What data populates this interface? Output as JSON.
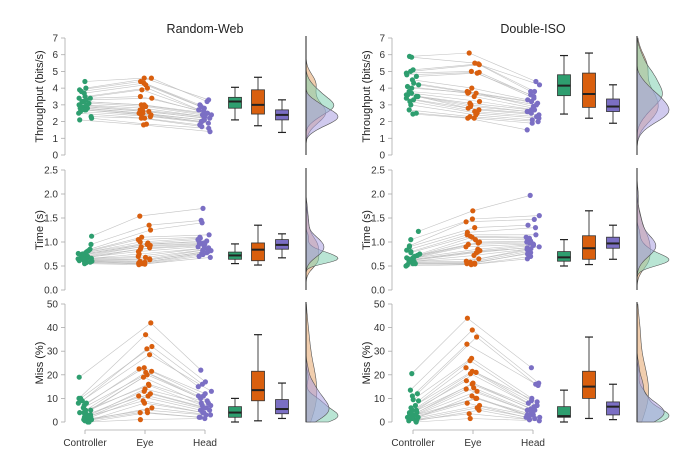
{
  "chart_data": {
    "type": "raincloud",
    "colors": {
      "Controller": "#2e9e6f",
      "Eye": "#d95f0e",
      "Head": "#7b6fc4",
      "line": "#bdbdbd",
      "axis": "#aaaaaa"
    },
    "density_colors": {
      "Controller": "#7fd0b0",
      "Eye": "#e6a56b",
      "Head": "#a99fe0"
    },
    "categories": [
      "Controller",
      "Eye",
      "Head"
    ],
    "panels": [
      {
        "title": "Random-Web",
        "rows": [
          {
            "metric": "Throughput",
            "ylabel": "Throughput (bits/s)",
            "ylim": [
              0,
              7
            ],
            "yticks": [
              "0",
              "1",
              "2",
              "3",
              "4",
              "5",
              "6",
              "7"
            ],
            "points": {
              "Controller": [
                4.4,
                4.0,
                3.9,
                3.8,
                3.7,
                3.5,
                3.4,
                3.4,
                3.3,
                3.2,
                3.2,
                3.1,
                3.0,
                3.0,
                2.9,
                2.9,
                2.8,
                2.8,
                2.7,
                2.7,
                2.6,
                2.5,
                2.3,
                2.2,
                2.1
              ],
              "Eye": [
                4.6,
                4.6,
                4.4,
                4.3,
                4.2,
                4.0,
                3.9,
                3.5,
                3.4,
                3.0,
                3.0,
                2.9,
                2.8,
                2.7,
                2.6,
                2.6,
                2.5,
                2.5,
                2.4,
                2.4,
                2.3,
                2.2,
                2.2,
                1.85,
                1.8
              ],
              "Head": [
                3.3,
                3.2,
                3.0,
                2.9,
                2.8,
                2.7,
                2.7,
                2.6,
                2.5,
                2.5,
                2.4,
                2.4,
                2.3,
                2.3,
                2.2,
                2.2,
                2.1,
                2.1,
                2.0,
                2.0,
                1.9,
                1.8,
                1.7,
                1.6,
                1.4
              ]
            },
            "box": {
              "Controller": {
                "min": 2.1,
                "q1": 2.8,
                "median": 3.2,
                "q3": 3.45,
                "max": 4.05
              },
              "Eye": {
                "min": 1.75,
                "q1": 2.45,
                "median": 3.0,
                "q3": 3.9,
                "max": 4.65
              },
              "Head": {
                "min": 1.35,
                "q1": 2.1,
                "median": 2.4,
                "q3": 2.7,
                "max": 3.3
              }
            }
          },
          {
            "metric": "Time",
            "ylabel": "Time (s)",
            "ylim": [
              0,
              2.5
            ],
            "yticks": [
              "0.0",
              "0.5",
              "1.0",
              "1.5",
              "2.0",
              "2.5"
            ],
            "points": {
              "Controller": [
                1.12,
                0.95,
                0.85,
                0.82,
                0.8,
                0.78,
                0.76,
                0.75,
                0.74,
                0.72,
                0.7,
                0.7,
                0.68,
                0.67,
                0.66,
                0.65,
                0.64,
                0.63,
                0.62,
                0.61,
                0.6,
                0.6,
                0.58,
                0.57,
                0.55
              ],
              "Eye": [
                1.54,
                1.35,
                1.25,
                1.1,
                1.05,
                1.0,
                0.98,
                0.96,
                0.95,
                0.93,
                0.9,
                0.88,
                0.85,
                0.8,
                0.75,
                0.7,
                0.68,
                0.65,
                0.63,
                0.6,
                0.58,
                0.56,
                0.55,
                0.54,
                0.53
              ],
              "Head": [
                1.7,
                1.45,
                1.4,
                1.15,
                1.1,
                1.08,
                1.05,
                1.02,
                1.0,
                0.98,
                0.96,
                0.95,
                0.93,
                0.9,
                0.88,
                0.87,
                0.85,
                0.83,
                0.82,
                0.8,
                0.78,
                0.76,
                0.74,
                0.7,
                0.68
              ]
            },
            "box": {
              "Controller": {
                "min": 0.55,
                "q1": 0.64,
                "median": 0.72,
                "q3": 0.79,
                "max": 0.96
              },
              "Eye": {
                "min": 0.52,
                "q1": 0.61,
                "median": 0.84,
                "q3": 0.98,
                "max": 1.35
              },
              "Head": {
                "min": 0.67,
                "q1": 0.85,
                "median": 0.94,
                "q3": 1.05,
                "max": 1.17
              }
            }
          },
          {
            "metric": "Miss",
            "ylabel": "Miss (%)",
            "ylim": [
              0,
              50
            ],
            "yticks": [
              "0",
              "10",
              "20",
              "30",
              "40",
              "50"
            ],
            "points": {
              "Controller": [
                19,
                10,
                10,
                9,
                8,
                8,
                7,
                6,
                5,
                5,
                4,
                4,
                4,
                3,
                3,
                3,
                2,
                2,
                2,
                1,
                1,
                1,
                0.5,
                0,
                0
              ],
              "Eye": [
                42,
                37,
                32,
                31,
                28.5,
                23,
                22.5,
                21.5,
                21,
                20,
                19,
                16,
                15.5,
                14,
                13,
                12,
                11,
                11,
                9,
                8,
                6,
                5,
                4,
                4,
                1
              ],
              "Head": [
                22,
                17,
                16,
                15,
                13,
                12,
                11,
                11,
                10,
                9,
                8,
                8,
                7,
                7,
                6,
                6,
                5,
                5,
                4,
                4,
                3,
                3,
                2,
                2,
                1.5
              ]
            },
            "box": {
              "Controller": {
                "min": 0,
                "q1": 2,
                "median": 4,
                "q3": 6.5,
                "max": 10
              },
              "Eye": {
                "min": 0.5,
                "q1": 9,
                "median": 13.5,
                "q3": 21.5,
                "max": 37
              },
              "Head": {
                "min": 1.5,
                "q1": 3.5,
                "median": 5.5,
                "q3": 9.5,
                "max": 16.5
              }
            }
          }
        ]
      },
      {
        "title": "Double-ISO",
        "rows": [
          {
            "metric": "Throughput",
            "ylabel": "Throughput (bits/s)",
            "ylim": [
              0,
              7
            ],
            "yticks": [
              "0",
              "1",
              "2",
              "3",
              "4",
              "5",
              "6",
              "7"
            ],
            "points": {
              "Controller": [
                5.9,
                5.85,
                5.1,
                5.0,
                4.9,
                4.8,
                4.7,
                4.5,
                4.3,
                4.2,
                4.1,
                4.0,
                3.8,
                3.7,
                3.6,
                3.6,
                3.5,
                3.5,
                3.4,
                3.3,
                3.2,
                3.0,
                2.7,
                2.5,
                2.45
              ],
              "Eye": [
                6.1,
                5.5,
                5.45,
                5.4,
                5.0,
                4.95,
                4.9,
                4.0,
                3.8,
                3.75,
                3.7,
                3.7,
                3.5,
                3.2,
                3.1,
                3.0,
                2.9,
                2.8,
                2.7,
                2.6,
                2.5,
                2.4,
                2.3,
                2.2,
                2.2
              ],
              "Head": [
                4.4,
                4.2,
                3.8,
                3.8,
                3.6,
                3.5,
                3.4,
                3.3,
                3.2,
                3.1,
                3.0,
                2.9,
                2.8,
                2.7,
                2.7,
                2.6,
                2.6,
                2.5,
                2.4,
                2.3,
                2.2,
                2.1,
                2.0,
                1.9,
                1.5
              ]
            },
            "box": {
              "Controller": {
                "min": 2.45,
                "q1": 3.55,
                "median": 4.15,
                "q3": 4.8,
                "max": 5.95
              },
              "Eye": {
                "min": 2.2,
                "q1": 2.85,
                "median": 3.65,
                "q3": 4.9,
                "max": 6.1
              },
              "Head": {
                "min": 1.9,
                "q1": 2.6,
                "median": 2.9,
                "q3": 3.35,
                "max": 4.2
              }
            }
          },
          {
            "metric": "Time",
            "ylabel": "Time (s)",
            "ylim": [
              0,
              2.5
            ],
            "yticks": [
              "0.0",
              "0.5",
              "1.0",
              "1.5",
              "2.0",
              "2.5"
            ],
            "points": {
              "Controller": [
                1.22,
                1.05,
                0.92,
                0.9,
                0.83,
                0.8,
                0.78,
                0.75,
                0.72,
                0.7,
                0.68,
                0.67,
                0.66,
                0.65,
                0.64,
                0.62,
                0.61,
                0.6,
                0.6,
                0.58,
                0.57,
                0.55,
                0.55,
                0.52,
                0.5
              ],
              "Eye": [
                1.65,
                1.48,
                1.42,
                1.3,
                1.2,
                1.15,
                1.12,
                1.1,
                1.05,
                1.0,
                0.98,
                0.95,
                0.9,
                0.85,
                0.82,
                0.8,
                0.78,
                0.72,
                0.65,
                0.6,
                0.58,
                0.56,
                0.55,
                0.54,
                0.53
              ],
              "Head": [
                1.97,
                1.55,
                1.47,
                1.35,
                1.3,
                1.15,
                1.1,
                1.08,
                1.05,
                1.02,
                1.0,
                0.98,
                0.96,
                0.95,
                0.93,
                0.9,
                0.88,
                0.86,
                0.85,
                0.83,
                0.8,
                0.78,
                0.75,
                0.7,
                0.65
              ]
            },
            "box": {
              "Controller": {
                "min": 0.5,
                "q1": 0.6,
                "median": 0.68,
                "q3": 0.8,
                "max": 1.05
              },
              "Eye": {
                "min": 0.53,
                "q1": 0.64,
                "median": 0.87,
                "q3": 1.13,
                "max": 1.65
              },
              "Head": {
                "min": 0.64,
                "q1": 0.87,
                "median": 0.97,
                "q3": 1.1,
                "max": 1.35
              }
            }
          },
          {
            "metric": "Miss",
            "ylabel": "Miss (%)",
            "ylim": [
              0,
              50
            ],
            "yticks": [
              "0",
              "10",
              "20",
              "30",
              "40",
              "50"
            ],
            "points": {
              "Controller": [
                20.5,
                13.5,
                12,
                11,
                9.5,
                9,
                7,
                6,
                5,
                5,
                4,
                4,
                3.5,
                3,
                3,
                2.5,
                2,
                2,
                2,
                1.5,
                1,
                1,
                0.5,
                0.5,
                0
              ],
              "Eye": [
                44,
                39,
                36,
                33,
                27,
                26,
                23,
                21.5,
                21,
                20.5,
                17.5,
                16.5,
                16,
                14.5,
                14,
                13,
                11,
                10,
                10,
                8,
                7,
                6,
                5,
                3.5,
                1.5
              ],
              "Head": [
                23,
                16.5,
                16,
                15.5,
                10,
                9,
                8.5,
                8,
                7,
                6.5,
                6,
                5.5,
                5,
                5,
                4,
                4,
                3,
                3,
                2.5,
                2,
                2,
                1.5,
                1,
                1,
                0.5
              ]
            },
            "box": {
              "Controller": {
                "min": 0,
                "q1": 2,
                "median": 2.5,
                "q3": 6.5,
                "max": 13.5
              },
              "Eye": {
                "min": 1.5,
                "q1": 10,
                "median": 15,
                "q3": 21.5,
                "max": 36
              },
              "Head": {
                "min": 1,
                "q1": 3,
                "median": 6.5,
                "q3": 8.5,
                "max": 16
              }
            }
          }
        ]
      }
    ]
  }
}
